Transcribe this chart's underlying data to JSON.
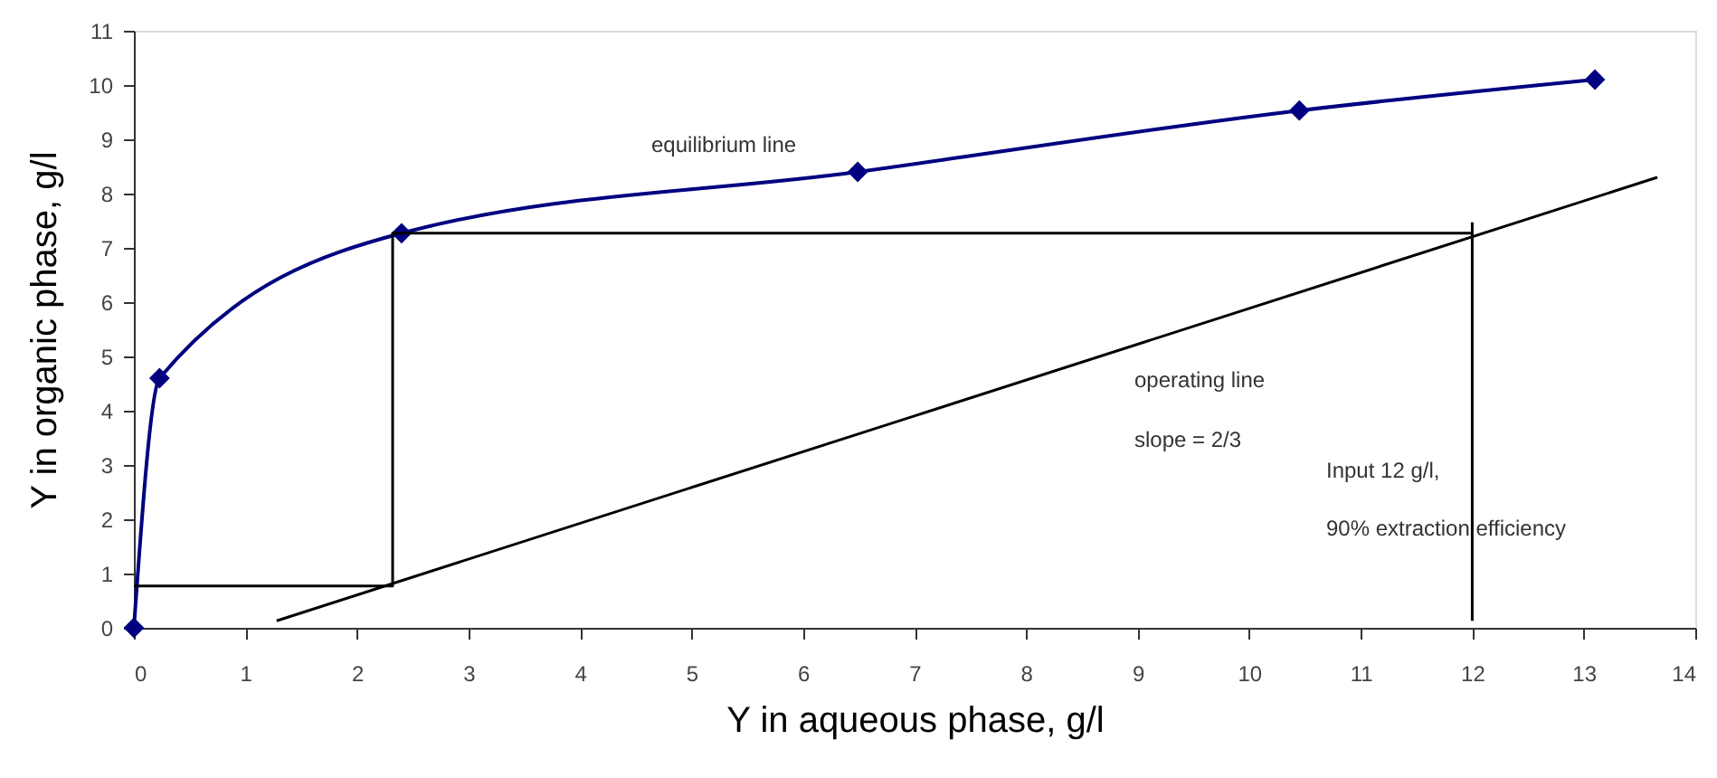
{
  "chart_data": {
    "type": "line",
    "xlabel": "Y in aqueous phase, g/l",
    "ylabel": "Y in organic phase, g/l",
    "xlim": [
      0,
      14
    ],
    "ylim": [
      0,
      11
    ],
    "xticks": [
      0,
      1,
      2,
      3,
      4,
      5,
      6,
      7,
      8,
      9,
      10,
      11,
      12,
      13,
      14
    ],
    "yticks": [
      0,
      1,
      2,
      3,
      4,
      5,
      6,
      7,
      8,
      9,
      10,
      11
    ],
    "grid": false,
    "series": [
      {
        "color": "#000080",
        "marker": "diamond",
        "x": [
          0,
          0.23,
          2.4,
          6.49,
          10.45,
          13.1
        ],
        "values": [
          0,
          4.6,
          7.27,
          8.4,
          9.53,
          10.1
        ]
      },
      {
        "color": "#000000",
        "marker": "none",
        "x": [
          1.28,
          13.66
        ],
        "values": [
          0.13,
          8.3
        ]
      },
      {
        "color": "#000000",
        "marker": "none",
        "x": [
          0,
          2.32,
          2.32,
          12
        ],
        "values": [
          0.77,
          0.77,
          7.27,
          7.27
        ]
      },
      {
        "color": "#000000",
        "marker": "none",
        "x": [
          12,
          12
        ],
        "values": [
          7.47,
          0.13
        ]
      }
    ],
    "annotations": [
      "equilibrium line",
      "operating line",
      "slope = 2/3",
      "Input 12 g/l,",
      "90% extraction efficiency"
    ]
  }
}
